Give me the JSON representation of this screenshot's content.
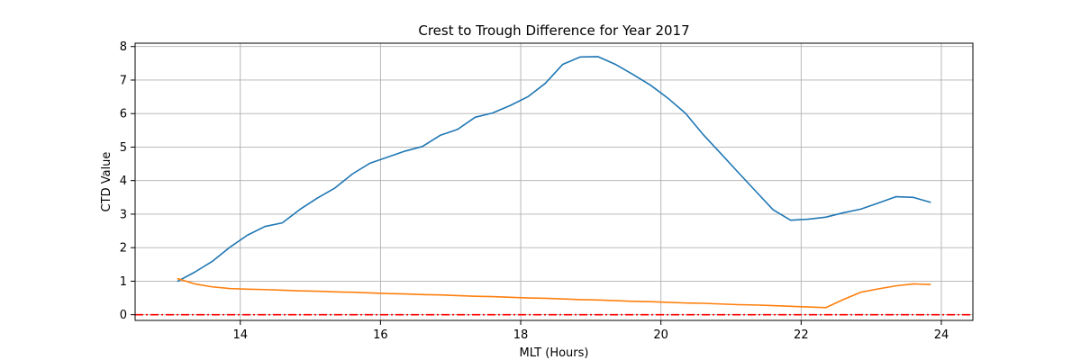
{
  "chart_data": {
    "type": "line",
    "title": "Crest to Trough Difference for Year 2017",
    "xlabel": "MLT (Hours)",
    "ylabel": "CTD Value",
    "xlim": [
      12.5,
      24.45
    ],
    "ylim": [
      -0.17,
      8.1
    ],
    "xticks": [
      14,
      16,
      18,
      20,
      22,
      24
    ],
    "yticks": [
      0,
      1,
      2,
      3,
      4,
      5,
      6,
      7,
      8
    ],
    "grid": true,
    "colors": {
      "series_1": "#1f77b4",
      "series_2": "#ff7f0e",
      "reference": "#ff0000",
      "grid": "#b0b0b0"
    },
    "series": [
      {
        "x": [
          13.1,
          13.35,
          13.6,
          13.85,
          14.1,
          14.35,
          14.6,
          14.85,
          15.1,
          15.35,
          15.6,
          15.85,
          16.1,
          16.35,
          16.6,
          16.85,
          17.1,
          17.35,
          17.6,
          17.85,
          18.1,
          18.35,
          18.6,
          18.85,
          19.1,
          19.35,
          19.6,
          19.85,
          20.1,
          20.35,
          20.6,
          20.85,
          21.1,
          21.35,
          21.6,
          21.85,
          22.1,
          22.35,
          22.6,
          22.85,
          23.1,
          23.35,
          23.6,
          23.85
        ],
        "values": [
          0.99,
          1.27,
          1.59,
          2.01,
          2.37,
          2.63,
          2.74,
          3.14,
          3.48,
          3.78,
          4.2,
          4.52,
          4.7,
          4.88,
          5.02,
          5.35,
          5.53,
          5.89,
          6.02,
          6.24,
          6.5,
          6.9,
          7.47,
          7.69,
          7.7,
          7.47,
          7.17,
          6.85,
          6.46,
          6.01,
          5.38,
          4.82,
          4.25,
          3.69,
          3.13,
          2.82,
          2.85,
          2.91,
          3.04,
          3.15,
          3.33,
          3.52,
          3.5,
          3.35
        ]
      },
      {
        "x": [
          13.1,
          13.35,
          13.6,
          13.85,
          14.1,
          14.35,
          14.6,
          14.85,
          15.1,
          15.35,
          15.6,
          15.85,
          16.1,
          16.35,
          16.6,
          16.85,
          17.1,
          17.35,
          17.6,
          17.85,
          18.1,
          18.35,
          18.6,
          18.85,
          19.1,
          19.35,
          19.6,
          19.85,
          20.1,
          20.35,
          20.6,
          20.85,
          21.1,
          21.35,
          21.6,
          21.85,
          22.1,
          22.35,
          22.6,
          22.85,
          23.1,
          23.35,
          23.6,
          23.85
        ],
        "values": [
          1.08,
          0.92,
          0.83,
          0.78,
          0.76,
          0.75,
          0.73,
          0.71,
          0.7,
          0.68,
          0.67,
          0.65,
          0.63,
          0.62,
          0.6,
          0.59,
          0.57,
          0.55,
          0.54,
          0.52,
          0.5,
          0.49,
          0.47,
          0.45,
          0.44,
          0.42,
          0.4,
          0.39,
          0.37,
          0.35,
          0.34,
          0.32,
          0.3,
          0.29,
          0.27,
          0.25,
          0.23,
          0.21,
          0.45,
          0.67,
          0.77,
          0.86,
          0.92,
          0.9
        ]
      }
    ],
    "reference_line": {
      "y": 0,
      "style": "dash-dot"
    }
  }
}
